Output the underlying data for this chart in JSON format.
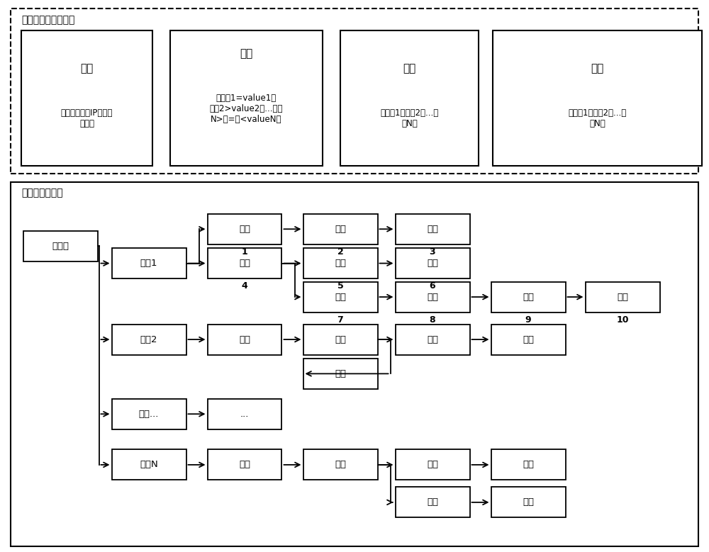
{
  "fig_width": 10.0,
  "fig_height": 7.79,
  "bg_color": "#ffffff",
  "top_label": "各类节点配置形式：",
  "bottom_label": "树状结构配置：",
  "top_box1_title": "来源",
  "top_box1_body": "（传输协议、IP、通信\n端口）",
  "top_box2_title": "辨别",
  "top_box2_body": "（属性1=value1，\n属性2>value2，...属性\nN>或=或<valueN）",
  "top_box3_title": "处理",
  "top_box3_body": "（参数1，参数2，...参\n数N）",
  "top_box4_title": "发送",
  "top_box4_body": "（目的1，目的2，...目\n的N）",
  "node_labels": {
    "root": "根节点",
    "src1": "来源1",
    "src2": "来源2",
    "srcdot": "来源...",
    "srcN": "来源N",
    "proc1": "处理",
    "disc4": "辨别",
    "proc_s2": "处理",
    "dot2": "...",
    "send_sN": "发送",
    "send2": "发送",
    "proc5": "处理",
    "disc7": "辨别",
    "disc_s2a": "辨别",
    "send_s2b": "发送",
    "disc_sN": "辨别",
    "send3": "发送",
    "send6": "发送",
    "send8": "发送",
    "disc_s2b": "辨别",
    "proc_sNa": "处理",
    "proc_sNb": "处理",
    "proc9": "处理",
    "send_s2c": "发送",
    "send_sNa": "发送",
    "send_sNb": "发送",
    "send10": "发送"
  },
  "num_labels": {
    "proc1": "1",
    "send2": "2",
    "send3": "3",
    "disc4": "4",
    "proc5": "5",
    "send6": "6",
    "disc7": "7",
    "send8": "8",
    "proc9": "9",
    "send10": "10"
  }
}
